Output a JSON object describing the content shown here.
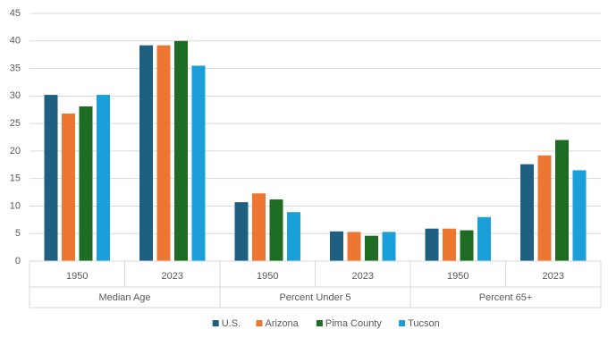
{
  "chart_data": {
    "type": "bar",
    "groups": [
      {
        "label": "Median Age",
        "categories": [
          "1950",
          "2023"
        ]
      },
      {
        "label": "Percent Under 5",
        "categories": [
          "1950",
          "2023"
        ]
      },
      {
        "label": "Percent 65+",
        "categories": [
          "1950",
          "2023"
        ]
      }
    ],
    "series": [
      {
        "name": "U.S.",
        "color": "#1f5f80",
        "values": [
          30.2,
          39.2,
          10.7,
          5.4,
          5.9,
          17.6
        ]
      },
      {
        "name": "Arizona",
        "color": "#ee7633",
        "values": [
          26.8,
          39.2,
          12.3,
          5.3,
          5.9,
          19.2
        ]
      },
      {
        "name": "Pima County",
        "color": "#1e6b24",
        "values": [
          28.1,
          40.0,
          11.2,
          4.6,
          5.6,
          22.0
        ]
      },
      {
        "name": "Tucson",
        "color": "#1a9fd8",
        "values": [
          30.2,
          35.5,
          8.9,
          5.3,
          8.0,
          16.5
        ]
      }
    ],
    "ylim": [
      0,
      45
    ],
    "yticks": [
      0,
      5,
      10,
      15,
      20,
      25,
      30,
      35,
      40,
      45
    ],
    "grid": true,
    "legend": "bottom"
  }
}
